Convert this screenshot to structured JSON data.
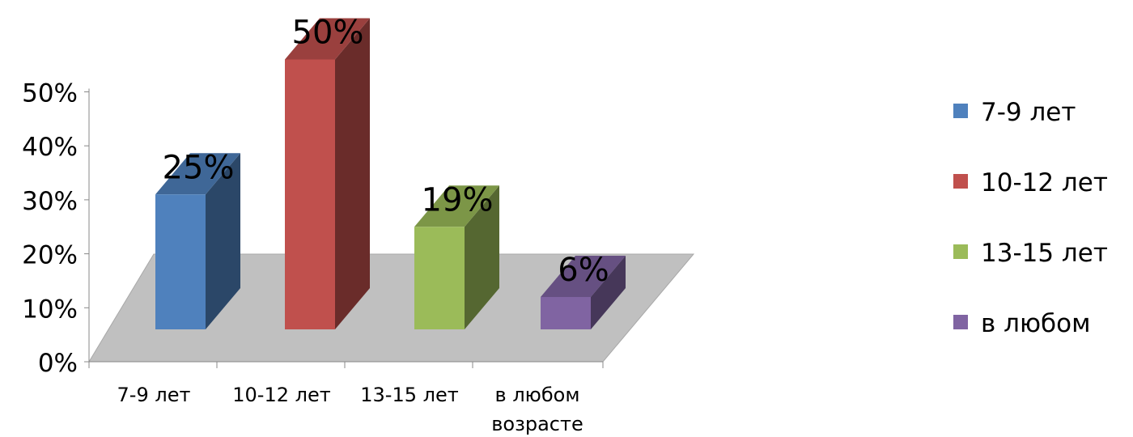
{
  "chart_data": {
    "type": "bar",
    "style": "3d",
    "categories": [
      "7-9 лет",
      "10-12 лет",
      "13-15 лет",
      "в любом возрасте"
    ],
    "category_lines": [
      [
        "7-9 лет"
      ],
      [
        "10-12 лет"
      ],
      [
        "13-15 лет"
      ],
      [
        "в любом",
        "возрасте"
      ]
    ],
    "values": [
      25,
      50,
      19,
      6
    ],
    "data_labels": [
      "25%",
      "50%",
      "19%",
      "6%"
    ],
    "colors": [
      "#4F81BD",
      "#C0504D",
      "#9BBB59",
      "#8064A2"
    ],
    "ylim": [
      0,
      50
    ],
    "yticks": [
      "0%",
      "10%",
      "20%",
      "30%",
      "40%",
      "50%"
    ],
    "grid": false,
    "floor_color": "#C0C0C0",
    "legend": {
      "position": "right",
      "entries": [
        "7-9 лет",
        "10-12 лет",
        "13-15 лет",
        "в любом"
      ]
    }
  }
}
